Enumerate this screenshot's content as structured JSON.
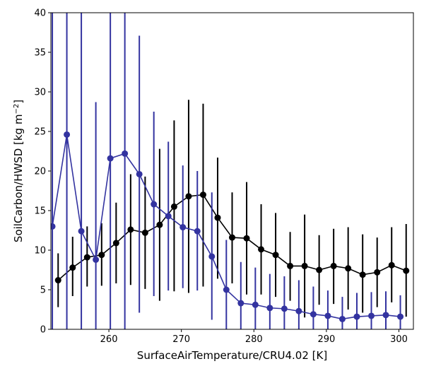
{
  "chart_data": {
    "type": "line",
    "xlabel": "SurfaceAirTemperature/CRU4.02 [K]",
    "ylabel_main": "SoilCarbon/HWSD [kg m",
    "ylabel_unit": "−2",
    "ylabel_close": "]",
    "xlim": [
      252,
      302
    ],
    "ylim": [
      0,
      40
    ],
    "xticks": [
      260,
      270,
      280,
      290,
      300
    ],
    "yticks": [
      0,
      5,
      10,
      15,
      20,
      25,
      30,
      35,
      40
    ],
    "grid": false,
    "series": [
      {
        "color": "#000000",
        "x": [
          253.0,
          255.0,
          257.0,
          259.0,
          261.0,
          263.0,
          265.0,
          267.0,
          269.0,
          271.0,
          273.0,
          275.0,
          277.0,
          279.0,
          281.0,
          283.0,
          285.0,
          287.0,
          289.0,
          291.0,
          293.0,
          295.0,
          297.0,
          299.0,
          301.0
        ],
        "y": [
          6.2,
          7.8,
          9.1,
          9.4,
          10.9,
          12.6,
          12.2,
          13.2,
          15.5,
          16.8,
          17.0,
          14.1,
          11.6,
          11.5,
          10.1,
          9.4,
          8.0,
          8.0,
          7.5,
          8.0,
          7.7,
          6.9,
          7.2,
          8.1,
          7.4
        ],
        "err_low": [
          2.8,
          4.2,
          5.4,
          5.5,
          5.8,
          5.6,
          5.1,
          3.6,
          4.8,
          4.6,
          5.4,
          6.4,
          5.8,
          4.4,
          4.4,
          4.1,
          3.6,
          1.5,
          3.1,
          3.2,
          2.5,
          2.1,
          2.8,
          3.4,
          1.6
        ],
        "err_high": [
          9.6,
          11.7,
          13.0,
          13.4,
          16.0,
          19.6,
          19.3,
          22.8,
          26.4,
          29.0,
          28.5,
          21.7,
          17.3,
          18.6,
          15.8,
          14.7,
          12.3,
          14.5,
          11.9,
          12.7,
          12.9,
          12.0,
          11.6,
          12.9,
          13.3
        ]
      },
      {
        "color": "#3333a0",
        "x": [
          252.2,
          254.2,
          256.2,
          258.2,
          260.2,
          262.2,
          264.2,
          266.2,
          268.2,
          270.2,
          272.2,
          274.2,
          276.2,
          278.2,
          280.2,
          282.2,
          284.2,
          286.2,
          288.2,
          290.2,
          292.2,
          294.2,
          296.2,
          298.2,
          300.2
        ],
        "y": [
          13.0,
          24.6,
          12.4,
          8.8,
          21.6,
          22.2,
          19.6,
          15.8,
          14.3,
          12.9,
          12.4,
          9.2,
          5.0,
          3.3,
          3.1,
          2.7,
          2.6,
          2.3,
          1.9,
          1.7,
          1.3,
          1.6,
          1.7,
          1.8,
          1.6
        ],
        "err_low": [
          0,
          0,
          0,
          0,
          0,
          0,
          2.1,
          4.2,
          4.9,
          5.2,
          4.9,
          1.2,
          0,
          0,
          0,
          0,
          0,
          0,
          0,
          0,
          0,
          0,
          0,
          0,
          0
        ],
        "err_high": [
          41,
          41,
          41,
          28.7,
          41,
          41,
          37.1,
          27.5,
          23.7,
          20.7,
          20.0,
          17.3,
          11.3,
          8.5,
          7.8,
          7.0,
          6.7,
          6.2,
          5.4,
          4.9,
          4.1,
          4.6,
          4.7,
          4.8,
          4.3
        ]
      }
    ]
  }
}
